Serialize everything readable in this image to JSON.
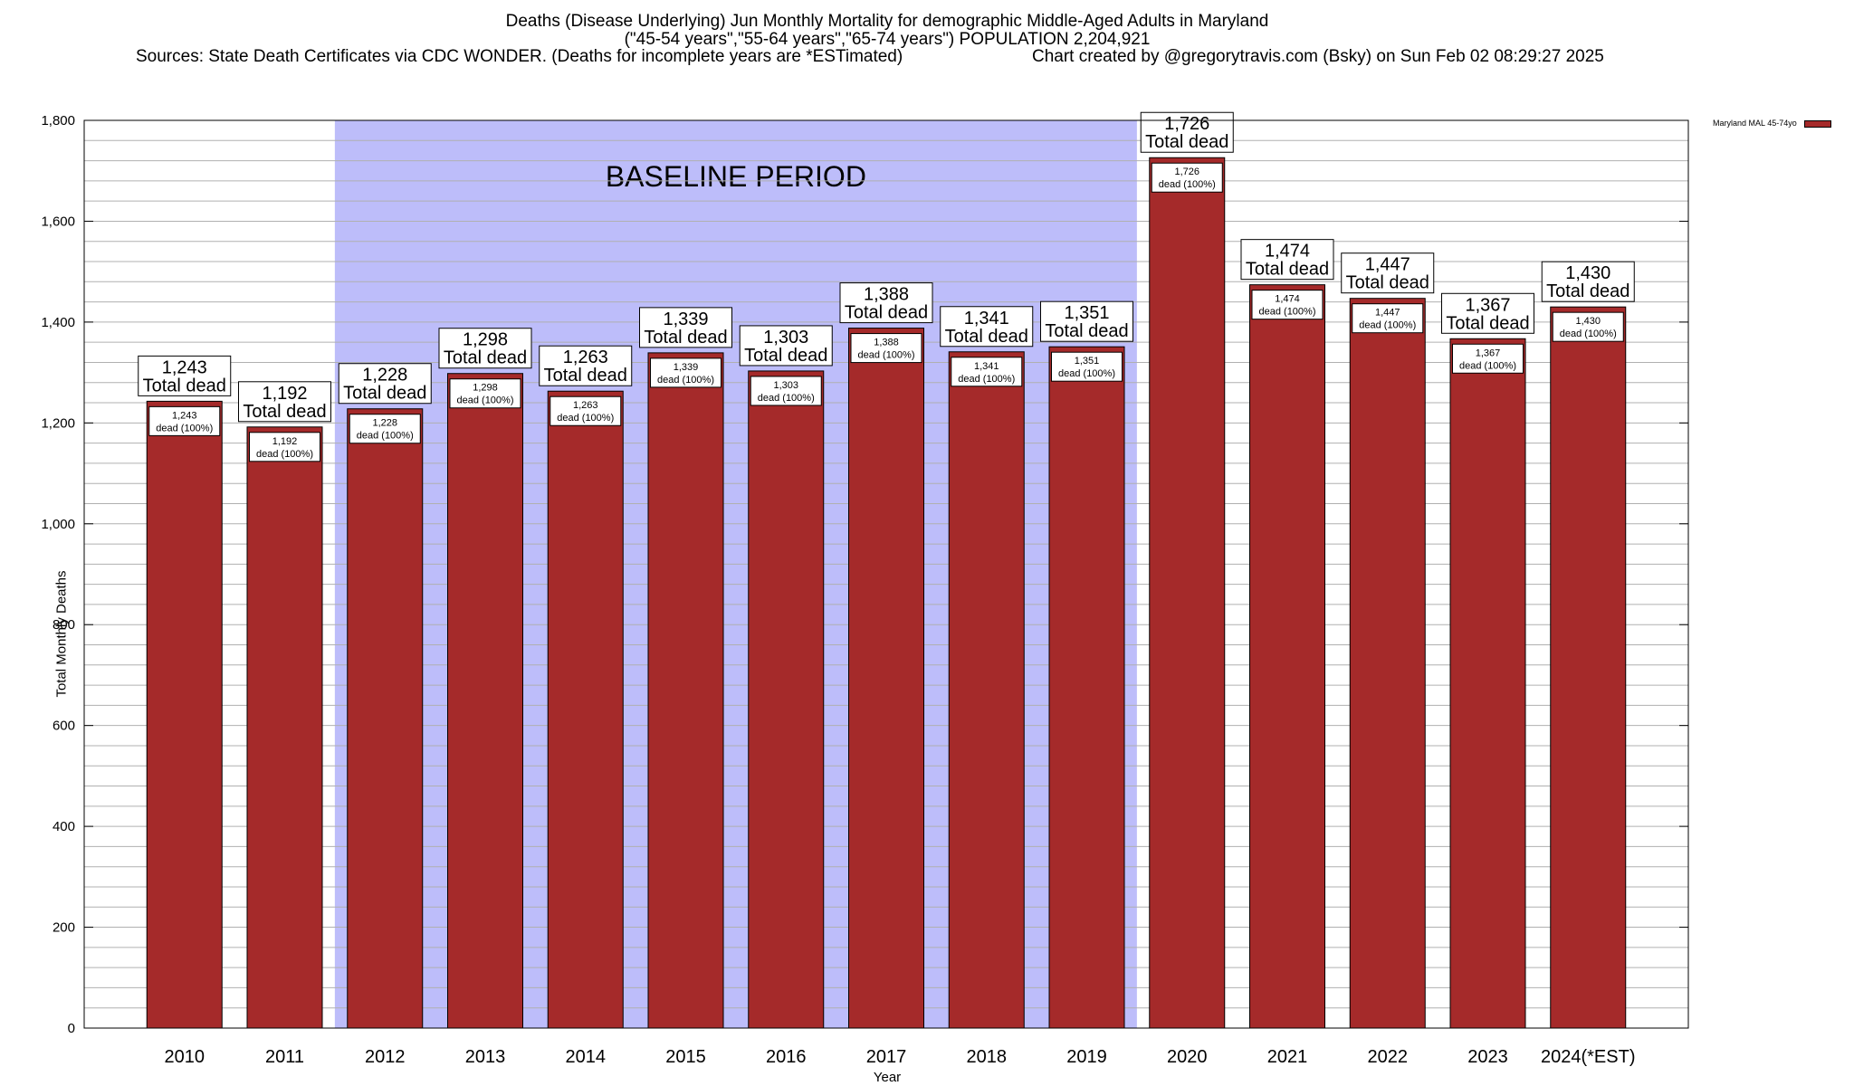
{
  "title": {
    "line1": "Deaths (Disease Underlying) Jun Monthly Mortality for demographic Middle-Aged Adults in Maryland",
    "line2": "(\"45-54 years\",\"55-64 years\",\"65-74 years\") POPULATION 2,204,921",
    "line3_left": "Sources: State Death Certificates via CDC WONDER. (Deaths for incomplete years are *ESTimated)",
    "line3_right": "Chart created by @gregorytravis.com (Bsky) on Sun Feb 02 08:29:27 2025"
  },
  "colors": {
    "bar": "#a52a2a",
    "baseline_shade": "#bdbdfa",
    "grid": "#b0b0b0"
  },
  "chart_data": {
    "type": "bar",
    "categories": [
      "2010",
      "2011",
      "2012",
      "2013",
      "2014",
      "2015",
      "2016",
      "2017",
      "2018",
      "2019",
      "2020",
      "2021",
      "2022",
      "2023",
      "2024(*EST)"
    ],
    "series": [
      {
        "name": "Maryland MAL 45-74yo",
        "values": [
          1243,
          1192,
          1228,
          1298,
          1263,
          1339,
          1303,
          1388,
          1341,
          1351,
          1726,
          1474,
          1447,
          1367,
          1430
        ]
      }
    ],
    "bar_labels_top": [
      "1,243",
      "1,192",
      "1,228",
      "1,298",
      "1,263",
      "1,339",
      "1,303",
      "1,388",
      "1,341",
      "1,351",
      "1,726",
      "1,474",
      "1,447",
      "1,367",
      "1,430"
    ],
    "top_label_suffix": "Total dead",
    "bar_labels_inner": [
      "1,243",
      "1,192",
      "1,228",
      "1,298",
      "1,263",
      "1,339",
      "1,303",
      "1,388",
      "1,341",
      "1,351",
      "1,726",
      "1,474",
      "1,447",
      "1,367",
      "1,430"
    ],
    "inner_label_suffix": "dead (100%)",
    "xlabel": "Year",
    "ylabel": "Total Monthly Deaths",
    "ylim": [
      0,
      1800
    ],
    "yticks": [
      0,
      200,
      400,
      600,
      800,
      1000,
      1200,
      1400,
      1600,
      1800
    ],
    "ytick_labels": [
      "0",
      "200",
      "400",
      "600",
      "800",
      "1,000",
      "1,200",
      "1,400",
      "1,600",
      "1,800"
    ],
    "minor_ystep": 40,
    "baseline_period": {
      "start": "2012",
      "end": "2019",
      "label": "BASELINE PERIOD"
    },
    "grid": true,
    "legend": {
      "entries": [
        "Maryland MAL 45-74yo"
      ],
      "placement": "outside-top-right"
    }
  }
}
